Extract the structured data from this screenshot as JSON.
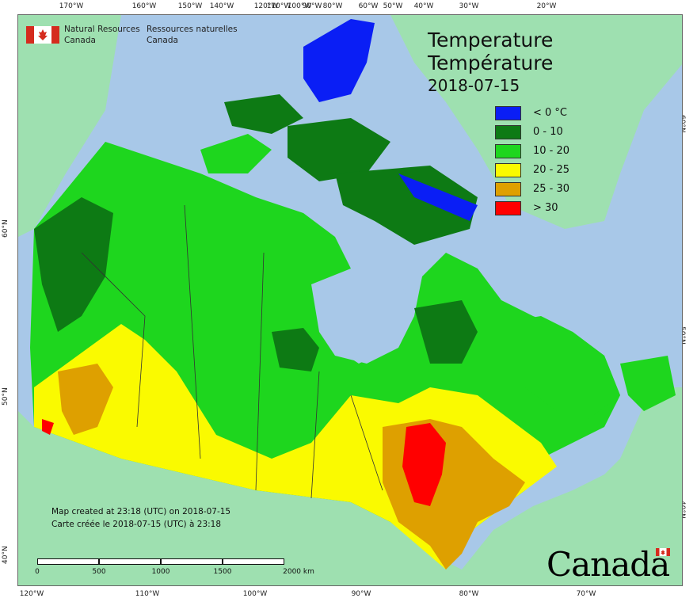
{
  "agency": {
    "name_en_1": "Natural Resources",
    "name_en_2": "Canada",
    "name_fr_1": "Ressources naturelles",
    "name_fr_2": "Canada"
  },
  "title": {
    "line1": "Temperature",
    "line2": "Température",
    "date": "2018-07-15"
  },
  "legend": [
    {
      "label": "< 0 °C",
      "color": "#0a1ef5"
    },
    {
      "label": "0 - 10",
      "color": "#0d7a14"
    },
    {
      "label": "10 - 20",
      "color": "#1ed61e"
    },
    {
      "label": "20 - 25",
      "color": "#fafa00"
    },
    {
      "label": "25 - 30",
      "color": "#dea000"
    },
    {
      "label": "> 30",
      "color": "#ff0000"
    }
  ],
  "credit": {
    "en": "Map created at 23:18 (UTC) on 2018-07-15",
    "fr": "Carte créée le 2018-07-15 (UTC) à 23:18"
  },
  "scale": {
    "labels": [
      "0",
      "500",
      "1000",
      "1500",
      "2000  km"
    ]
  },
  "graticule": {
    "top": [
      "170°W",
      "160°W",
      "150°W",
      "140°W",
      "120°W",
      "110°W",
      "100°W",
      "90°W",
      "80°W",
      "60°W",
      "50°W",
      "40°W",
      "30°W",
      "20°W"
    ],
    "bottom": [
      "120°W",
      "110°W",
      "100°W",
      "90°W",
      "80°W",
      "70°W"
    ],
    "left": [
      "60°N",
      "50°N",
      "40°N"
    ],
    "right": [
      "60°N",
      "50°N",
      "40°N"
    ]
  },
  "wordmark": "Canada",
  "colors": {
    "water": "#a8c8e8",
    "land_other": "#9ee0b0"
  }
}
